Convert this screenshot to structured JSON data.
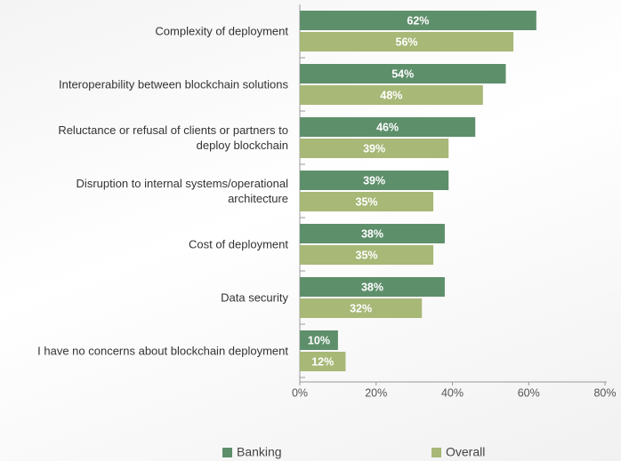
{
  "chart_data": {
    "type": "bar",
    "orientation": "horizontal",
    "categories": [
      "Complexity of deployment",
      "Interoperability between blockchain solutions",
      "Reluctance or refusal of clients or partners to\ndeploy blockchain",
      "Disruption to internal systems/operational\narchitecture",
      "Cost of deployment",
      "Data security",
      "I have no concerns about blockchain deployment"
    ],
    "series": [
      {
        "name": "Banking",
        "color": "#5e8f6b",
        "values": [
          62,
          54,
          46,
          39,
          38,
          38,
          10
        ],
        "value_labels": [
          "62%",
          "54%",
          "46%",
          "39%",
          "38%",
          "38%",
          "10%"
        ]
      },
      {
        "name": "Overall",
        "color": "#a7b877",
        "values": [
          56,
          48,
          39,
          35,
          35,
          32,
          12
        ],
        "value_labels": [
          "56%",
          "48%",
          "39%",
          "35%",
          "35%",
          "32%",
          "12%"
        ]
      }
    ],
    "xlim": [
      0,
      80
    ],
    "xticks": [
      {
        "value": 0,
        "label": "0%"
      },
      {
        "value": 20,
        "label": "20%"
      },
      {
        "value": 40,
        "label": "40%"
      },
      {
        "value": 60,
        "label": "60%"
      },
      {
        "value": 80,
        "label": "80%"
      }
    ],
    "legend": "bottom"
  }
}
